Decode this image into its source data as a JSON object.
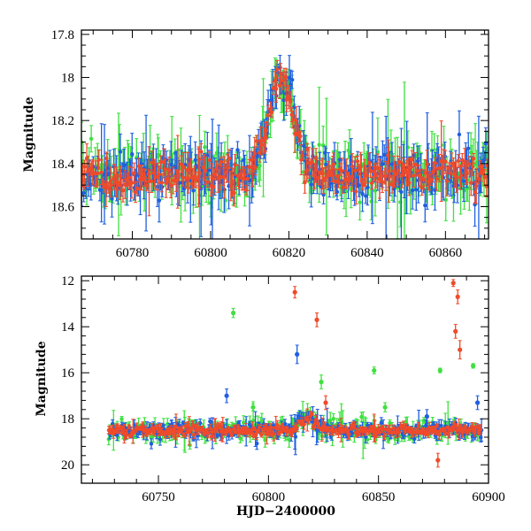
{
  "chart_data": [
    {
      "type": "scatter",
      "panel": "top",
      "title": "",
      "xlabel": "",
      "ylabel": "Magnitude",
      "xlim": [
        60767,
        60871
      ],
      "ylim": [
        18.75,
        17.78
      ],
      "y_inverted": true,
      "x_ticks": [
        60780,
        60800,
        60820,
        60840,
        60860
      ],
      "x_tick_labels": [
        "60780",
        "60800",
        "60820",
        "60840",
        "60860"
      ],
      "y_ticks": [
        17.8,
        18.0,
        18.2,
        18.4,
        18.6
      ],
      "y_tick_labels": [
        "17.8",
        "18",
        "18.2",
        "18.4",
        "18.6"
      ],
      "baseline": 18.45,
      "flare": {
        "peak_x": 60818,
        "peak_y": 18.0,
        "width_days": 3.2
      },
      "series": [
        {
          "color": "#3fe03f",
          "scatter": 0.09,
          "typical_error": 0.07
        },
        {
          "color": "#1f5fe0",
          "scatter": 0.08,
          "typical_error": 0.06
        },
        {
          "color": "#f04a2a",
          "scatter": 0.06,
          "typical_error": 0.04
        }
      ]
    },
    {
      "type": "scatter",
      "panel": "bottom",
      "title": "",
      "xlabel": "HJD−2400000",
      "ylabel": "Magnitude",
      "xlim": [
        60715,
        60900
      ],
      "ylim": [
        20.8,
        11.8
      ],
      "y_inverted": true,
      "x_ticks": [
        60750,
        60800,
        60850,
        60900
      ],
      "x_tick_labels": [
        "60750",
        "60800",
        "60850",
        "60900"
      ],
      "y_ticks": [
        12,
        14,
        16,
        18,
        20
      ],
      "y_tick_labels": [
        "12",
        "14",
        "16",
        "18",
        "20"
      ],
      "baseline": 18.5,
      "flare": {
        "peak_x": 60818,
        "peak_y": 18.0,
        "width_days": 3.2
      },
      "outliers": [
        {
          "series": "red",
          "x": 60812,
          "y": 12.5,
          "err": 0.25
        },
        {
          "series": "red",
          "x": 60822,
          "y": 13.7,
          "err": 0.3
        },
        {
          "series": "red",
          "x": 60884,
          "y": 12.1,
          "err": 0.15
        },
        {
          "series": "red",
          "x": 60886,
          "y": 12.7,
          "err": 0.3
        },
        {
          "series": "red",
          "x": 60885,
          "y": 14.2,
          "err": 0.3
        },
        {
          "series": "red",
          "x": 60887,
          "y": 15.0,
          "err": 0.4
        },
        {
          "series": "red",
          "x": 60826,
          "y": 17.3,
          "err": 0.3
        },
        {
          "series": "red",
          "x": 60848,
          "y": 18.4,
          "err": 0.6
        },
        {
          "series": "red",
          "x": 60877,
          "y": 19.8,
          "err": 0.3
        },
        {
          "series": "green",
          "x": 60784,
          "y": 13.4,
          "err": 0.2
        },
        {
          "series": "green",
          "x": 60824,
          "y": 16.4,
          "err": 0.3
        },
        {
          "series": "green",
          "x": 60848,
          "y": 15.9,
          "err": 0.15
        },
        {
          "series": "green",
          "x": 60878,
          "y": 15.9,
          "err": 0.1
        },
        {
          "series": "green",
          "x": 60893,
          "y": 15.7,
          "err": 0.1
        },
        {
          "series": "green",
          "x": 60793,
          "y": 17.5,
          "err": 0.15
        },
        {
          "series": "green",
          "x": 60853,
          "y": 17.5,
          "err": 0.2
        },
        {
          "series": "blue",
          "x": 60813,
          "y": 15.2,
          "err": 0.4
        },
        {
          "series": "blue",
          "x": 60781,
          "y": 17.0,
          "err": 0.3
        },
        {
          "series": "blue",
          "x": 60895,
          "y": 17.3,
          "err": 0.3
        },
        {
          "series": "blue",
          "x": 60872,
          "y": 17.9,
          "err": 0.3
        }
      ],
      "series": [
        {
          "color": "#3fe03f",
          "scatter": 0.35,
          "typical_error": 0.2
        },
        {
          "color": "#1f5fe0",
          "scatter": 0.25,
          "typical_error": 0.15
        },
        {
          "color": "#f04a2a",
          "scatter": 0.18,
          "typical_error": 0.12
        }
      ]
    }
  ]
}
